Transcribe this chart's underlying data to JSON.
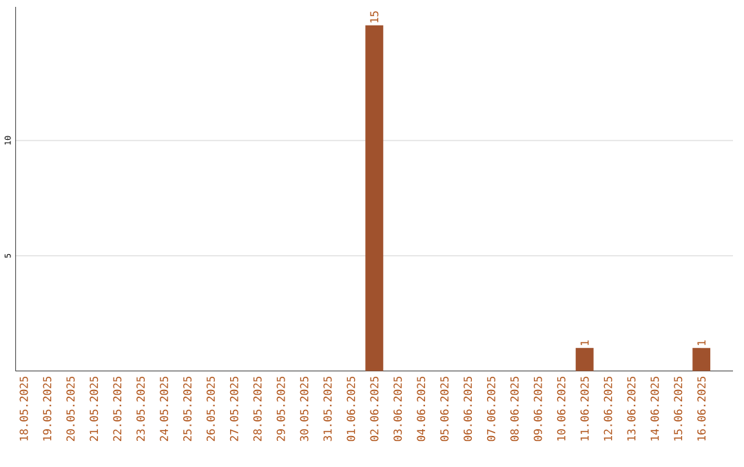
{
  "chart_data": {
    "type": "bar",
    "categories": [
      "18.05.2025",
      "19.05.2025",
      "20.05.2025",
      "21.05.2025",
      "22.05.2025",
      "23.05.2025",
      "24.05.2025",
      "25.05.2025",
      "26.05.2025",
      "27.05.2025",
      "28.05.2025",
      "29.05.2025",
      "30.05.2025",
      "31.05.2025",
      "01.06.2025",
      "02.06.2025",
      "03.06.2025",
      "04.06.2025",
      "05.06.2025",
      "06.06.2025",
      "07.06.2025",
      "08.06.2025",
      "09.06.2025",
      "10.06.2025",
      "11.06.2025",
      "12.06.2025",
      "13.06.2025",
      "14.06.2025",
      "15.06.2025",
      "16.06.2025"
    ],
    "values": [
      0,
      0,
      0,
      0,
      0,
      0,
      0,
      0,
      0,
      0,
      0,
      0,
      0,
      0,
      0,
      15,
      0,
      0,
      0,
      0,
      0,
      0,
      0,
      0,
      1,
      0,
      0,
      0,
      0,
      1
    ],
    "value_labels": [
      null,
      null,
      null,
      null,
      null,
      null,
      null,
      null,
      null,
      null,
      null,
      null,
      null,
      null,
      null,
      "15",
      null,
      null,
      null,
      null,
      null,
      null,
      null,
      null,
      "1",
      null,
      null,
      null,
      null,
      "1"
    ],
    "color": "#a0522d",
    "ylim": [
      0,
      15.8
    ],
    "yticks": [
      5,
      10
    ],
    "grid": "y"
  }
}
